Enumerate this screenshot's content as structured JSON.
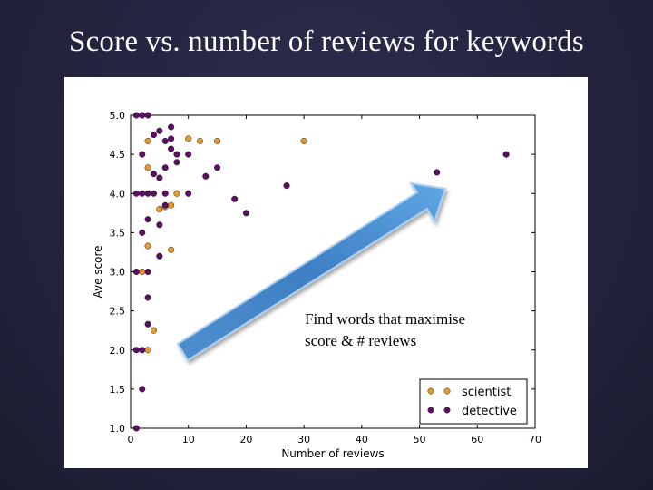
{
  "slide": {
    "title": "Score vs. number of reviews for keywords",
    "callout": [
      "Find words that maximise",
      "score & # reviews"
    ]
  },
  "colors": {
    "scientist": "#e8992e",
    "detective": "#5b0f63",
    "arrow": "#5b9bd5"
  },
  "chart_data": {
    "type": "scatter",
    "xlabel": "Number of reviews",
    "ylabel": "Ave score",
    "xlim": [
      0,
      70
    ],
    "ylim": [
      1.0,
      5.0
    ],
    "xticks": [
      "0",
      "10",
      "20",
      "30",
      "40",
      "50",
      "60",
      "70"
    ],
    "yticks": [
      "1.0",
      "1.5",
      "2.0",
      "2.5",
      "3.0",
      "3.5",
      "4.0",
      "4.5",
      "5.0"
    ],
    "grid": false,
    "legend": "bottom-right",
    "series": [
      {
        "name": "scientist",
        "points": [
          [
            3,
            4.67
          ],
          [
            3,
            4.33
          ],
          [
            5,
            3.8
          ],
          [
            6,
            3.83
          ],
          [
            7,
            3.85
          ],
          [
            8,
            4.0
          ],
          [
            10,
            4.7
          ],
          [
            12,
            4.67
          ],
          [
            15,
            4.67
          ],
          [
            30,
            4.67
          ],
          [
            3,
            3.33
          ],
          [
            7,
            3.28
          ],
          [
            2,
            3.0
          ],
          [
            4,
            2.25
          ],
          [
            3,
            2.0
          ]
        ]
      },
      {
        "name": "detective",
        "points": [
          [
            1,
            5.0
          ],
          [
            2,
            5.0
          ],
          [
            3,
            5.0
          ],
          [
            7,
            4.85
          ],
          [
            5,
            4.8
          ],
          [
            4,
            4.75
          ],
          [
            6,
            4.67
          ],
          [
            7,
            4.7
          ],
          [
            7,
            4.57
          ],
          [
            2,
            4.5
          ],
          [
            8,
            4.5
          ],
          [
            10,
            4.5
          ],
          [
            6,
            4.33
          ],
          [
            8,
            4.4
          ],
          [
            15,
            4.33
          ],
          [
            4,
            4.25
          ],
          [
            5,
            4.2
          ],
          [
            13,
            4.22
          ],
          [
            27,
            4.1
          ],
          [
            53,
            4.27
          ],
          [
            65,
            4.5
          ],
          [
            1,
            4.0
          ],
          [
            2,
            4.0
          ],
          [
            3,
            4.0
          ],
          [
            4,
            4.0
          ],
          [
            6,
            4.0
          ],
          [
            10,
            4.0
          ],
          [
            18,
            3.93
          ],
          [
            6,
            3.85
          ],
          [
            3,
            3.67
          ],
          [
            20,
            3.75
          ],
          [
            5,
            3.6
          ],
          [
            2,
            3.5
          ],
          [
            5,
            3.2
          ],
          [
            1,
            3.0
          ],
          [
            3,
            3.0
          ],
          [
            3,
            2.67
          ],
          [
            3,
            2.33
          ],
          [
            1,
            2.0
          ],
          [
            2,
            2.0
          ],
          [
            2,
            1.5
          ],
          [
            1,
            1.0
          ]
        ]
      }
    ]
  }
}
